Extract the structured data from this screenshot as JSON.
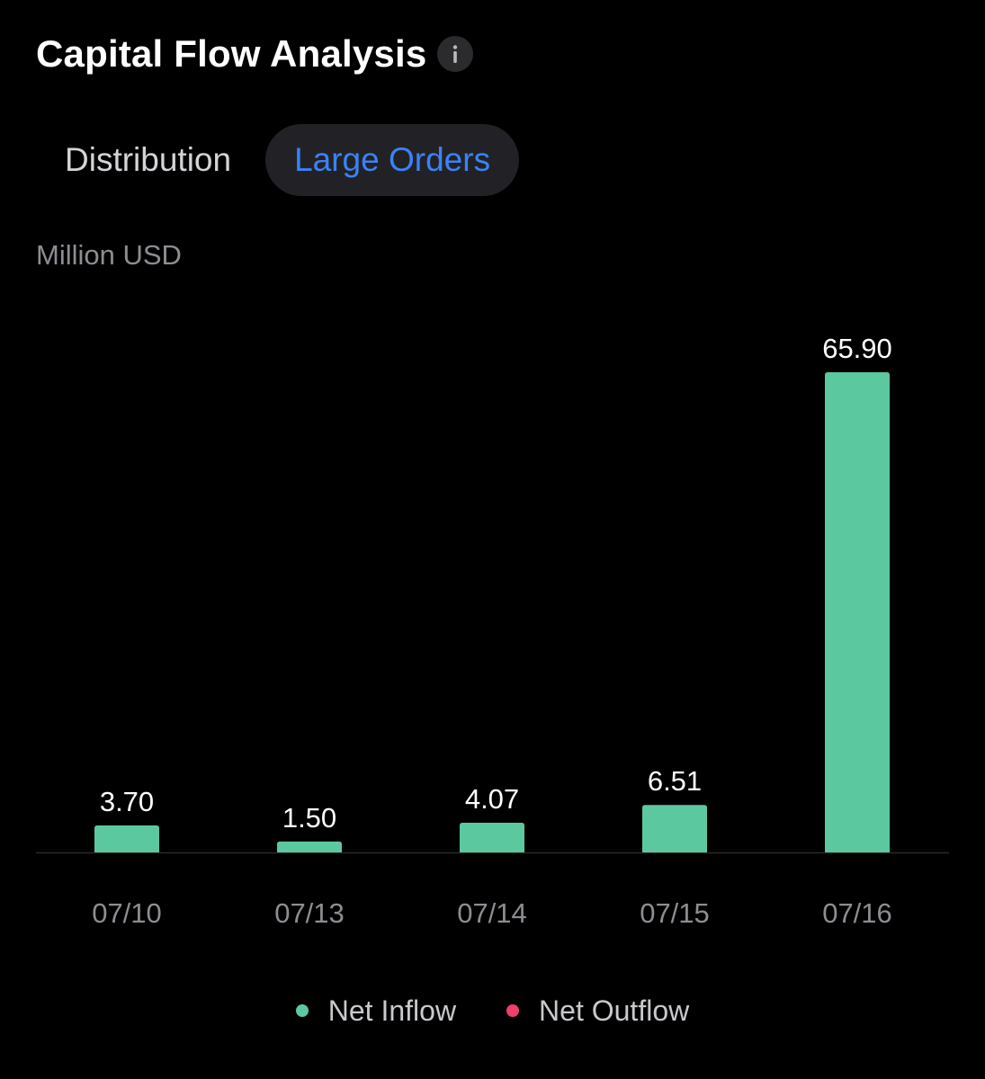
{
  "header": {
    "title": "Capital Flow Analysis",
    "info_icon": "info-icon"
  },
  "tabs": [
    {
      "label": "Distribution",
      "active": false
    },
    {
      "label": "Large Orders",
      "active": true
    }
  ],
  "colors": {
    "background": "#000000",
    "inflow": "#5cc89f",
    "outflow": "#ef3f6a",
    "active_tab": "#3b82f6"
  },
  "chart_data": {
    "type": "bar",
    "title": "",
    "ylabel": "Million USD",
    "xlabel": "",
    "categories": [
      "07/10",
      "07/13",
      "07/14",
      "07/15",
      "07/16"
    ],
    "values": [
      3.7,
      1.5,
      4.07,
      6.51,
      65.9
    ],
    "value_labels": [
      "3.70",
      "1.50",
      "4.07",
      "6.51",
      "65.90"
    ],
    "ylim": [
      0,
      65.9
    ],
    "grid": false,
    "legend_position": "bottom",
    "legend": [
      {
        "label": "Net Inflow",
        "color": "#5cc89f"
      },
      {
        "label": "Net Outflow",
        "color": "#ef3f6a"
      }
    ]
  }
}
